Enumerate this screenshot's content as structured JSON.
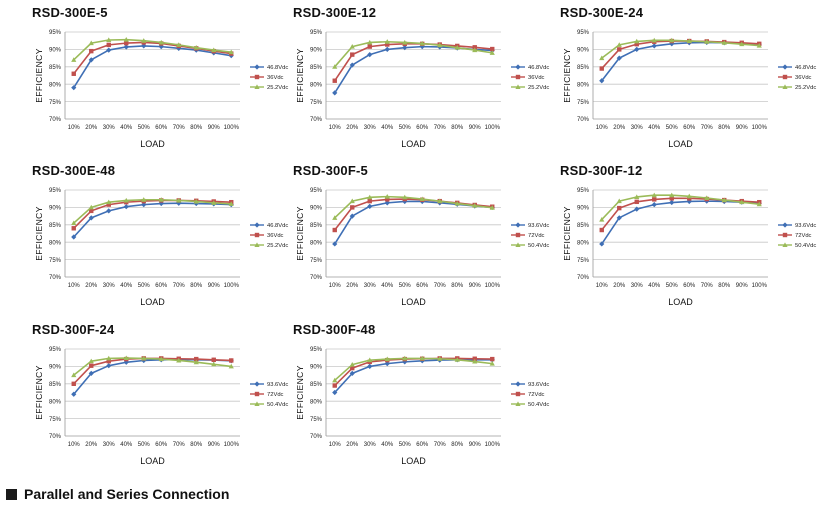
{
  "chart_data": [
    {
      "type": "line",
      "title": "RSD-300E-5",
      "xlabel": "LOAD",
      "ylabel": "EFFICIENCY",
      "categories": [
        "10%",
        "20%",
        "30%",
        "40%",
        "50%",
        "60%",
        "70%",
        "80%",
        "90%",
        "100%"
      ],
      "yticks": [
        "70%",
        "75%",
        "80%",
        "85%",
        "90%",
        "95%"
      ],
      "ylim": [
        70,
        95
      ],
      "grid": "horizontal",
      "legend": "right",
      "series": [
        {
          "name": "46.8Vdc",
          "color": "#3f6fb5",
          "marker": "diamond",
          "values": [
            79,
            87,
            89.8,
            90.7,
            91,
            90.8,
            90.3,
            89.8,
            89,
            88.2
          ]
        },
        {
          "name": "36Vdc",
          "color": "#c0504d",
          "marker": "square",
          "values": [
            83,
            89.5,
            91.3,
            91.8,
            92,
            91.7,
            91,
            90.3,
            89.5,
            88.8
          ]
        },
        {
          "name": "25.2Vdc",
          "color": "#9bbb59",
          "marker": "triangle",
          "values": [
            87,
            91.8,
            92.7,
            92.8,
            92.5,
            92,
            91.3,
            90.5,
            89.8,
            89.2
          ]
        }
      ]
    },
    {
      "type": "line",
      "title": "RSD-300E-12",
      "xlabel": "LOAD",
      "ylabel": "EFFICIENCY",
      "categories": [
        "10%",
        "20%",
        "30%",
        "40%",
        "50%",
        "60%",
        "70%",
        "80%",
        "90%",
        "100%"
      ],
      "yticks": [
        "70%",
        "75%",
        "80%",
        "85%",
        "90%",
        "95%"
      ],
      "ylim": [
        70,
        95
      ],
      "grid": "horizontal",
      "legend": "right",
      "series": [
        {
          "name": "46.8Vdc",
          "color": "#3f6fb5",
          "marker": "diamond",
          "values": [
            77.5,
            85.5,
            88.5,
            90,
            90.5,
            90.8,
            90.7,
            90.4,
            90,
            89.7
          ]
        },
        {
          "name": "36Vdc",
          "color": "#c0504d",
          "marker": "square",
          "values": [
            81,
            88.5,
            90.8,
            91.4,
            91.6,
            91.6,
            91.4,
            91,
            90.6,
            90.1
          ]
        },
        {
          "name": "25.2Vdc",
          "color": "#9bbb59",
          "marker": "triangle",
          "values": [
            85,
            90.8,
            92,
            92.2,
            92,
            91.7,
            91.2,
            90.5,
            89.8,
            89
          ]
        }
      ]
    },
    {
      "type": "line",
      "title": "RSD-300E-24",
      "xlabel": "LOAD",
      "ylabel": "EFFICIENCY",
      "categories": [
        "10%",
        "20%",
        "30%",
        "40%",
        "50%",
        "60%",
        "70%",
        "80%",
        "90%",
        "100%"
      ],
      "yticks": [
        "70%",
        "75%",
        "80%",
        "85%",
        "90%",
        "95%"
      ],
      "ylim": [
        70,
        95
      ],
      "grid": "horizontal",
      "legend": "right",
      "series": [
        {
          "name": "46.8Vdc",
          "color": "#3f6fb5",
          "marker": "diamond",
          "values": [
            81,
            87.5,
            90,
            91,
            91.6,
            91.9,
            92,
            91.9,
            91.7,
            91.5
          ]
        },
        {
          "name": "36Vdc",
          "color": "#c0504d",
          "marker": "square",
          "values": [
            84.5,
            90,
            91.5,
            92.2,
            92.4,
            92.4,
            92.3,
            92.1,
            91.9,
            91.6
          ]
        },
        {
          "name": "25.2Vdc",
          "color": "#9bbb59",
          "marker": "triangle",
          "values": [
            87.5,
            91.3,
            92.3,
            92.6,
            92.6,
            92.4,
            92.2,
            91.9,
            91.5,
            91.1
          ]
        }
      ]
    },
    {
      "type": "line",
      "title": "RSD-300E-48",
      "xlabel": "LOAD",
      "ylabel": "EFFICIENCY",
      "categories": [
        "10%",
        "20%",
        "30%",
        "40%",
        "50%",
        "60%",
        "70%",
        "80%",
        "90%",
        "100%"
      ],
      "yticks": [
        "70%",
        "75%",
        "80%",
        "85%",
        "90%",
        "95%"
      ],
      "ylim": [
        70,
        95
      ],
      "grid": "horizontal",
      "legend": "right",
      "series": [
        {
          "name": "46.8Vdc",
          "color": "#3f6fb5",
          "marker": "diamond",
          "values": [
            81.5,
            87,
            89,
            90.2,
            90.8,
            91.1,
            91.2,
            91.1,
            91,
            90.8
          ]
        },
        {
          "name": "36Vdc",
          "color": "#c0504d",
          "marker": "square",
          "values": [
            84,
            89,
            90.8,
            91.5,
            91.8,
            92,
            92,
            91.9,
            91.7,
            91.5
          ]
        },
        {
          "name": "25.2Vdc",
          "color": "#9bbb59",
          "marker": "triangle",
          "values": [
            85.5,
            90,
            91.5,
            92,
            92.2,
            92.2,
            92,
            91.7,
            91.3,
            91
          ]
        }
      ]
    },
    {
      "type": "line",
      "title": "RSD-300F-5",
      "xlabel": "LOAD",
      "ylabel": "EFFICIENCY",
      "categories": [
        "10%",
        "20%",
        "30%",
        "40%",
        "50%",
        "60%",
        "70%",
        "80%",
        "90%",
        "100%"
      ],
      "yticks": [
        "70%",
        "75%",
        "80%",
        "85%",
        "90%",
        "95%"
      ],
      "ylim": [
        70,
        95
      ],
      "grid": "horizontal",
      "legend": "right",
      "series": [
        {
          "name": "93.6Vdc",
          "color": "#3f6fb5",
          "marker": "diamond",
          "values": [
            79.5,
            87.5,
            90.3,
            91.3,
            91.7,
            91.7,
            91.3,
            90.9,
            90.4,
            90
          ]
        },
        {
          "name": "72Vdc",
          "color": "#c0504d",
          "marker": "square",
          "values": [
            83.5,
            90,
            91.8,
            92.3,
            92.4,
            92.2,
            91.8,
            91.3,
            90.7,
            90.2
          ]
        },
        {
          "name": "50.4Vdc",
          "color": "#9bbb59",
          "marker": "triangle",
          "values": [
            87,
            91.8,
            92.9,
            93.1,
            92.9,
            92.4,
            91.8,
            91.1,
            90.5,
            89.9
          ]
        }
      ]
    },
    {
      "type": "line",
      "title": "RSD-300F-12",
      "xlabel": "LOAD",
      "ylabel": "EFFICIENCY",
      "categories": [
        "10%",
        "20%",
        "30%",
        "40%",
        "50%",
        "60%",
        "70%",
        "80%",
        "90%",
        "100%"
      ],
      "yticks": [
        "70%",
        "75%",
        "80%",
        "85%",
        "90%",
        "95%"
      ],
      "ylim": [
        70,
        95
      ],
      "grid": "horizontal",
      "legend": "right",
      "series": [
        {
          "name": "93.6Vdc",
          "color": "#3f6fb5",
          "marker": "diamond",
          "values": [
            79.5,
            87,
            89.5,
            90.8,
            91.4,
            91.7,
            91.8,
            91.7,
            91.5,
            91.2
          ]
        },
        {
          "name": "72Vdc",
          "color": "#c0504d",
          "marker": "square",
          "values": [
            83.5,
            89.8,
            91.6,
            92.3,
            92.6,
            92.6,
            92.4,
            92.1,
            91.8,
            91.5
          ]
        },
        {
          "name": "50.4Vdc",
          "color": "#9bbb59",
          "marker": "triangle",
          "values": [
            86.5,
            91.8,
            93,
            93.5,
            93.5,
            93.2,
            92.7,
            92.1,
            91.5,
            90.9
          ]
        }
      ]
    },
    {
      "type": "line",
      "title": "RSD-300F-24",
      "xlabel": "LOAD",
      "ylabel": "EFFICIENCY",
      "categories": [
        "10%",
        "20%",
        "30%",
        "40%",
        "50%",
        "60%",
        "70%",
        "80%",
        "90%",
        "100%"
      ],
      "yticks": [
        "70%",
        "75%",
        "80%",
        "85%",
        "90%",
        "95%"
      ],
      "ylim": [
        70,
        95
      ],
      "grid": "horizontal",
      "legend": "right",
      "series": [
        {
          "name": "93.6Vdc",
          "color": "#3f6fb5",
          "marker": "diamond",
          "values": [
            82,
            88,
            90.2,
            91.2,
            91.7,
            91.9,
            92,
            91.9,
            91.8,
            91.6
          ]
        },
        {
          "name": "72Vdc",
          "color": "#c0504d",
          "marker": "square",
          "values": [
            85,
            90.2,
            91.5,
            92.1,
            92.3,
            92.3,
            92.2,
            92.1,
            91.9,
            91.7
          ]
        },
        {
          "name": "50.4Vdc",
          "color": "#9bbb59",
          "marker": "triangle",
          "values": [
            87.5,
            91.5,
            92.3,
            92.4,
            92.3,
            92.1,
            91.7,
            91.2,
            90.6,
            90
          ]
        }
      ]
    },
    {
      "type": "line",
      "title": "RSD-300F-48",
      "xlabel": "LOAD",
      "ylabel": "EFFICIENCY",
      "categories": [
        "10%",
        "20%",
        "30%",
        "40%",
        "50%",
        "60%",
        "70%",
        "80%",
        "90%",
        "100%"
      ],
      "yticks": [
        "70%",
        "75%",
        "80%",
        "85%",
        "90%",
        "95%"
      ],
      "ylim": [
        70,
        95
      ],
      "grid": "horizontal",
      "legend": "right",
      "series": [
        {
          "name": "93.6Vdc",
          "color": "#3f6fb5",
          "marker": "diamond",
          "values": [
            82.5,
            88,
            90,
            90.8,
            91.3,
            91.6,
            91.8,
            91.9,
            91.9,
            91.9
          ]
        },
        {
          "name": "72Vdc",
          "color": "#c0504d",
          "marker": "square",
          "values": [
            84.5,
            89.5,
            91.3,
            91.8,
            92.1,
            92.2,
            92.3,
            92.3,
            92.2,
            92.1
          ]
        },
        {
          "name": "50.4Vdc",
          "color": "#9bbb59",
          "marker": "triangle",
          "values": [
            86,
            90.5,
            91.8,
            92.1,
            92.3,
            92.3,
            92.2,
            91.9,
            91.4,
            90.8
          ]
        }
      ]
    }
  ],
  "section": {
    "title": "Parallel and Series Connection",
    "icon": "black-square-icon"
  }
}
